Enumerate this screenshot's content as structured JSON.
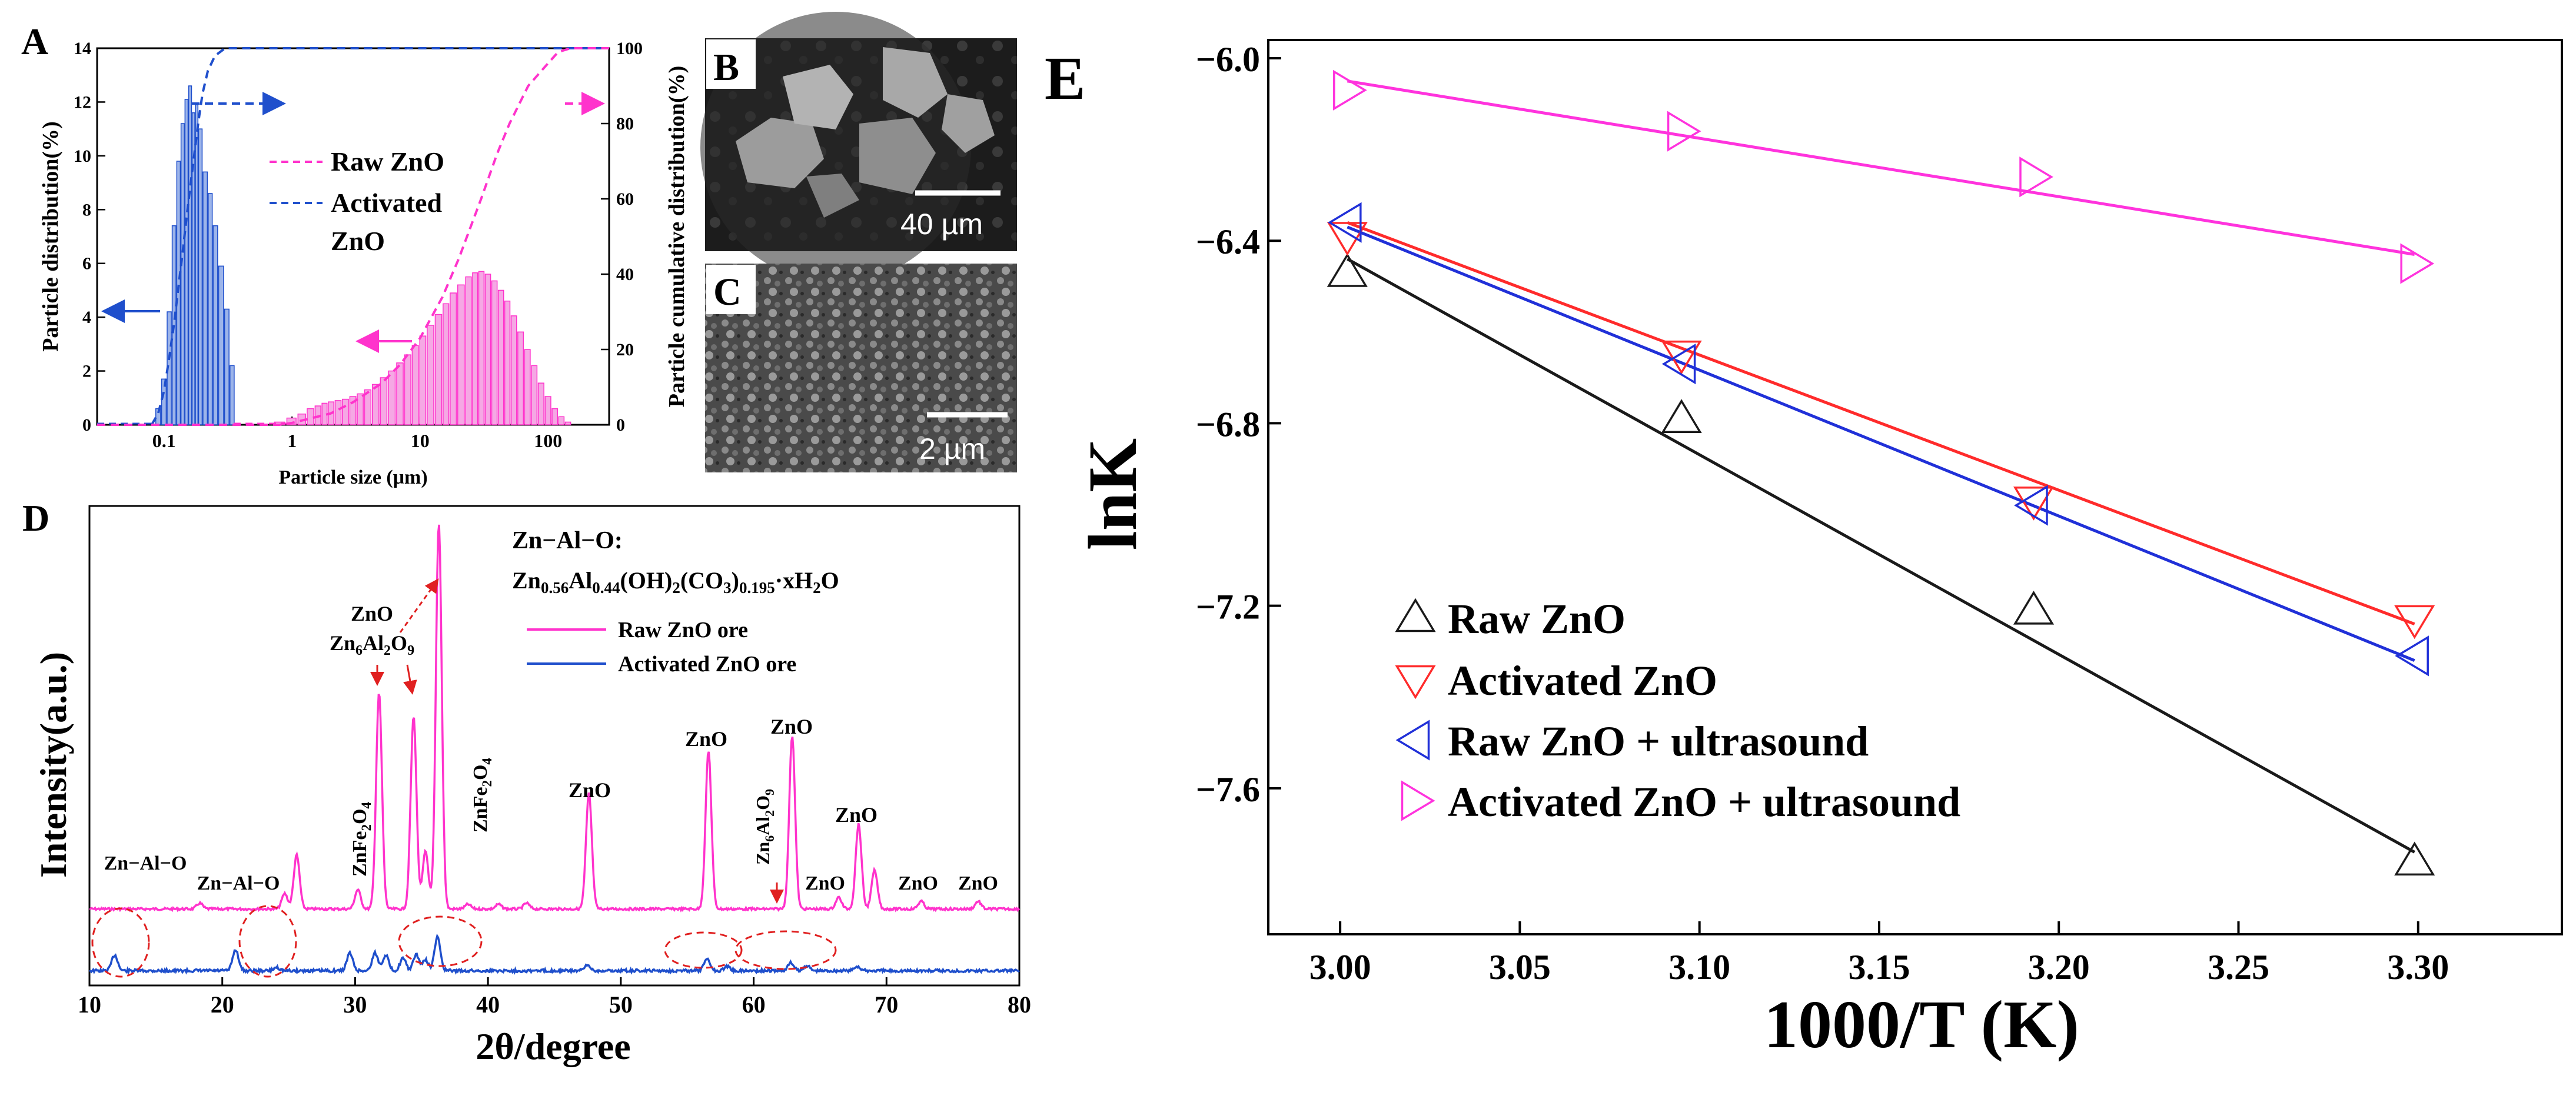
{
  "figure": {
    "panel_labels": {
      "a": "A",
      "b": "B",
      "c": "C",
      "d": "D",
      "e": "E"
    },
    "sem_b_scale": "40 µm",
    "sem_c_scale": "2 µm"
  },
  "colors": {
    "raw": "#ff33cc",
    "activated": "#1f4fcc",
    "raw_bar": "#f5a8e4",
    "act_bar": "#9db5ea",
    "e_raw": "#1a1a1a",
    "e_act": "#ff2b2b",
    "e_raw_us": "#2030d8",
    "e_act_us": "#ff33dd"
  },
  "chart_data": [
    {
      "id": "A",
      "type": "bar",
      "title": "",
      "xlabel": "Particle size (μm)",
      "ylabel": "Particle distribution(%)",
      "ylabel_right": "Particle cumulative distribution(%)",
      "xscale": "log",
      "xlim": [
        0.03,
        300
      ],
      "ylim": [
        0,
        14
      ],
      "ylim_right": [
        0,
        100
      ],
      "xticks": [
        0.1,
        1,
        10,
        100
      ],
      "xtick_labels": [
        "0.1",
        "1",
        "10",
        "100"
      ],
      "yticks": [
        0,
        2,
        4,
        6,
        8,
        10,
        12,
        14
      ],
      "yticks_right": [
        0,
        20,
        40,
        60,
        80,
        100
      ],
      "legend": [
        "Raw ZnO",
        "Activated",
        "ZnO"
      ],
      "series": [
        {
          "name": "Activated ZnO distribution",
          "x": [
            0.09,
            0.1,
            0.11,
            0.12,
            0.13,
            0.14,
            0.15,
            0.16,
            0.17,
            0.18,
            0.19,
            0.21,
            0.23,
            0.25,
            0.28,
            0.31,
            0.34
          ],
          "values": [
            0.6,
            1.7,
            4.2,
            7.4,
            9.8,
            11.2,
            12.1,
            12.6,
            11.6,
            11.9,
            11.0,
            9.4,
            8.6,
            7.4,
            5.9,
            4.3,
            2.2
          ]
        },
        {
          "name": "Raw ZnO distribution",
          "x": [
            0.8,
            1.0,
            1.2,
            1.4,
            1.6,
            1.8,
            2.0,
            2.3,
            2.6,
            3.0,
            3.4,
            3.9,
            4.5,
            5.2,
            6.0,
            7.0,
            8.0,
            9.2,
            10.5,
            12,
            14,
            16,
            18,
            21,
            24,
            27,
            30,
            34,
            38,
            43,
            48,
            54,
            61,
            69,
            78,
            88,
            100,
            113,
            127,
            143
          ],
          "values": [
            0.1,
            0.25,
            0.4,
            0.6,
            0.7,
            0.8,
            0.85,
            0.9,
            0.95,
            1.05,
            1.15,
            1.3,
            1.5,
            1.75,
            2.0,
            2.3,
            2.6,
            2.95,
            3.3,
            3.7,
            4.1,
            4.5,
            4.9,
            5.2,
            5.5,
            5.65,
            5.7,
            5.6,
            5.35,
            5.0,
            4.6,
            4.05,
            3.45,
            2.8,
            2.2,
            1.55,
            1.05,
            0.6,
            0.3,
            0.1
          ]
        },
        {
          "name": "Activated ZnO cumulative",
          "x": [
            0.08,
            0.09,
            0.1,
            0.11,
            0.12,
            0.13,
            0.14,
            0.15,
            0.16,
            0.17,
            0.18,
            0.19,
            0.2,
            0.22,
            0.25,
            0.3,
            0.35,
            300
          ],
          "values": [
            0,
            3,
            9,
            18,
            27,
            37,
            46,
            55,
            63,
            70,
            77,
            83,
            88,
            94,
            98,
            100,
            100,
            100
          ]
        },
        {
          "name": "Raw ZnO cumulative",
          "x": [
            0.03,
            0.8,
            1,
            2,
            3,
            5,
            7,
            10,
            15,
            20,
            30,
            40,
            50,
            70,
            100,
            120,
            150,
            300
          ],
          "values": [
            0,
            0,
            0.5,
            3,
            6,
            11,
            16,
            23,
            34,
            44,
            60,
            72,
            80,
            90,
            96,
            99,
            100,
            100
          ]
        }
      ]
    },
    {
      "id": "D",
      "type": "line",
      "title": "",
      "xlabel": "2θ/degree",
      "ylabel": "Intensity(a.u.)",
      "xlim": [
        10,
        80
      ],
      "xticks": [
        10,
        20,
        30,
        40,
        50,
        60,
        70,
        80
      ],
      "xtick_labels": [
        "10",
        "20",
        "30",
        "40",
        "50",
        "60",
        "70",
        "80"
      ],
      "legend": [
        "Raw ZnO ore",
        "Activated  ZnO  ore"
      ],
      "annotations": {
        "header": "Zn−Al−O:",
        "formula": "Zn0.56Al0.44(OH)2(CO3)0.195·xH2O",
        "peak_zno_a": "ZnO",
        "peak_zn6al2o9_a": "Zn6Al2O9",
        "peak_znfe2o4_a": "ZnFe2O4",
        "peak_znfe2o4_b": "ZnFe2O4",
        "peak_zno_b": "ZnO",
        "peak_zno_c": "ZnO",
        "peak_zno_d": "ZnO",
        "peak_zn6al2o9_b": "Zn6Al2O9",
        "peak_zno_e": "ZnO",
        "peak_zno_f": "ZnO",
        "peak_zno_g": "ZnO",
        "peak_zno_h": "ZnO",
        "peak_znalo_a": "Zn−Al−O",
        "peak_znalo_b": "Zn−Al−O"
      },
      "series": [
        {
          "name": "Raw ZnO ore",
          "baseline": 0,
          "peaks": [
            [
              18.3,
              0.015
            ],
            [
              24.7,
              0.04
            ],
            [
              25.6,
              0.14
            ],
            [
              30.2,
              0.05
            ],
            [
              31.8,
              0.56
            ],
            [
              34.4,
              0.5
            ],
            [
              35.3,
              0.15
            ],
            [
              36.3,
              1.0
            ],
            [
              38.5,
              0.012
            ],
            [
              40.8,
              0.012
            ],
            [
              42.9,
              0.015
            ],
            [
              47.6,
              0.3
            ],
            [
              56.6,
              0.41
            ],
            [
              62.9,
              0.45
            ],
            [
              66.4,
              0.03
            ],
            [
              67.9,
              0.22
            ],
            [
              69.1,
              0.1
            ],
            [
              72.6,
              0.02
            ],
            [
              76.9,
              0.02
            ]
          ]
        },
        {
          "name": "Activated ZnO ore",
          "baseline": 0,
          "peaks": [
            [
              11.9,
              0.09
            ],
            [
              21.0,
              0.12
            ],
            [
              24.1,
              0.02
            ],
            [
              29.6,
              0.1
            ],
            [
              31.5,
              0.1
            ],
            [
              32.3,
              0.09
            ],
            [
              33.6,
              0.07
            ],
            [
              34.6,
              0.09
            ],
            [
              35.3,
              0.06
            ],
            [
              36.2,
              0.19
            ],
            [
              47.5,
              0.03
            ],
            [
              56.5,
              0.07
            ],
            [
              58.0,
              0.025
            ],
            [
              62.8,
              0.045
            ],
            [
              64.0,
              0.03
            ],
            [
              67.8,
              0.025
            ]
          ]
        }
      ]
    },
    {
      "id": "E",
      "type": "scatter",
      "title": "",
      "xlabel": "1000/T (K)",
      "ylabel": "lnK",
      "xlim": [
        2.98,
        3.34
      ],
      "ylim": [
        -7.92,
        -5.96
      ],
      "xticks": [
        3.0,
        3.05,
        3.1,
        3.15,
        3.2,
        3.25,
        3.3
      ],
      "xtick_labels": [
        "3.00",
        "3.05",
        "3.10",
        "3.15",
        "3.20",
        "3.25",
        "3.30"
      ],
      "yticks": [
        -6.0,
        -6.4,
        -6.8,
        -7.2,
        -7.6
      ],
      "ytick_labels": [
        "−6.0",
        "−6.4",
        "−6.8",
        "−7.2",
        "−7.6"
      ],
      "legend": [
        "Raw ZnO",
        "Activated ZnO",
        "Raw ZnO + ultrasound",
        "Activated ZnO + ultrasound"
      ],
      "series": [
        {
          "name": "Raw ZnO",
          "marker": "triangle-up",
          "x": [
            3.002,
            3.095,
            3.193,
            3.299
          ],
          "values": [
            -6.47,
            -6.79,
            -7.21,
            -7.76
          ],
          "fit": [
            [
              3.002,
              -6.44
            ],
            [
              3.299,
              -7.74
            ]
          ]
        },
        {
          "name": "Activated ZnO",
          "marker": "triangle-down",
          "x": [
            3.002,
            3.095,
            3.193,
            3.299
          ],
          "values": [
            -6.39,
            -6.65,
            -6.97,
            -7.23
          ],
          "fit": [
            [
              3.002,
              -6.36
            ],
            [
              3.299,
              -7.24
            ]
          ]
        },
        {
          "name": "Raw ZnO + ultrasound",
          "marker": "triangle-left",
          "x": [
            3.002,
            3.095,
            3.193,
            3.299
          ],
          "values": [
            -6.36,
            -6.67,
            -6.98,
            -7.31
          ],
          "fit": [
            [
              3.002,
              -6.37
            ],
            [
              3.299,
              -7.32
            ]
          ]
        },
        {
          "name": "Activated ZnO + ultrasound",
          "marker": "triangle-right",
          "x": [
            3.002,
            3.095,
            3.193,
            3.299
          ],
          "values": [
            -6.07,
            -6.16,
            -6.26,
            -6.45
          ],
          "fit": [
            [
              3.002,
              -6.05
            ],
            [
              3.299,
              -6.43
            ]
          ]
        }
      ]
    }
  ]
}
